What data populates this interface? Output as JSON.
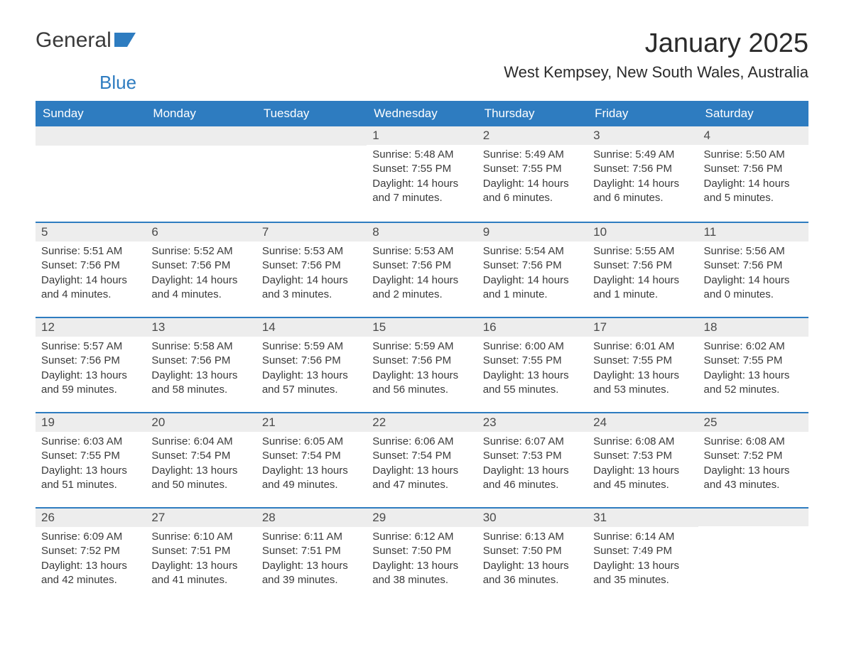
{
  "logo": {
    "text1": "General",
    "text2": "Blue"
  },
  "title": "January 2025",
  "location": "West Kempsey, New South Wales, Australia",
  "colors": {
    "header_bg": "#2e7cc0",
    "header_fg": "#ffffff",
    "daynum_bg": "#ededed",
    "accent": "#2e7cc0",
    "text": "#3a3a3a",
    "page_bg": "#ffffff"
  },
  "daysOfWeek": [
    "Sunday",
    "Monday",
    "Tuesday",
    "Wednesday",
    "Thursday",
    "Friday",
    "Saturday"
  ],
  "labels": {
    "sunrise": "Sunrise:",
    "sunset": "Sunset:",
    "daylight": "Daylight:"
  },
  "grid": [
    [
      null,
      null,
      null,
      {
        "n": "1",
        "sr": "5:48 AM",
        "ss": "7:55 PM",
        "dl": "14 hours and 7 minutes."
      },
      {
        "n": "2",
        "sr": "5:49 AM",
        "ss": "7:55 PM",
        "dl": "14 hours and 6 minutes."
      },
      {
        "n": "3",
        "sr": "5:49 AM",
        "ss": "7:56 PM",
        "dl": "14 hours and 6 minutes."
      },
      {
        "n": "4",
        "sr": "5:50 AM",
        "ss": "7:56 PM",
        "dl": "14 hours and 5 minutes."
      }
    ],
    [
      {
        "n": "5",
        "sr": "5:51 AM",
        "ss": "7:56 PM",
        "dl": "14 hours and 4 minutes."
      },
      {
        "n": "6",
        "sr": "5:52 AM",
        "ss": "7:56 PM",
        "dl": "14 hours and 4 minutes."
      },
      {
        "n": "7",
        "sr": "5:53 AM",
        "ss": "7:56 PM",
        "dl": "14 hours and 3 minutes."
      },
      {
        "n": "8",
        "sr": "5:53 AM",
        "ss": "7:56 PM",
        "dl": "14 hours and 2 minutes."
      },
      {
        "n": "9",
        "sr": "5:54 AM",
        "ss": "7:56 PM",
        "dl": "14 hours and 1 minute."
      },
      {
        "n": "10",
        "sr": "5:55 AM",
        "ss": "7:56 PM",
        "dl": "14 hours and 1 minute."
      },
      {
        "n": "11",
        "sr": "5:56 AM",
        "ss": "7:56 PM",
        "dl": "14 hours and 0 minutes."
      }
    ],
    [
      {
        "n": "12",
        "sr": "5:57 AM",
        "ss": "7:56 PM",
        "dl": "13 hours and 59 minutes."
      },
      {
        "n": "13",
        "sr": "5:58 AM",
        "ss": "7:56 PM",
        "dl": "13 hours and 58 minutes."
      },
      {
        "n": "14",
        "sr": "5:59 AM",
        "ss": "7:56 PM",
        "dl": "13 hours and 57 minutes."
      },
      {
        "n": "15",
        "sr": "5:59 AM",
        "ss": "7:56 PM",
        "dl": "13 hours and 56 minutes."
      },
      {
        "n": "16",
        "sr": "6:00 AM",
        "ss": "7:55 PM",
        "dl": "13 hours and 55 minutes."
      },
      {
        "n": "17",
        "sr": "6:01 AM",
        "ss": "7:55 PM",
        "dl": "13 hours and 53 minutes."
      },
      {
        "n": "18",
        "sr": "6:02 AM",
        "ss": "7:55 PM",
        "dl": "13 hours and 52 minutes."
      }
    ],
    [
      {
        "n": "19",
        "sr": "6:03 AM",
        "ss": "7:55 PM",
        "dl": "13 hours and 51 minutes."
      },
      {
        "n": "20",
        "sr": "6:04 AM",
        "ss": "7:54 PM",
        "dl": "13 hours and 50 minutes."
      },
      {
        "n": "21",
        "sr": "6:05 AM",
        "ss": "7:54 PM",
        "dl": "13 hours and 49 minutes."
      },
      {
        "n": "22",
        "sr": "6:06 AM",
        "ss": "7:54 PM",
        "dl": "13 hours and 47 minutes."
      },
      {
        "n": "23",
        "sr": "6:07 AM",
        "ss": "7:53 PM",
        "dl": "13 hours and 46 minutes."
      },
      {
        "n": "24",
        "sr": "6:08 AM",
        "ss": "7:53 PM",
        "dl": "13 hours and 45 minutes."
      },
      {
        "n": "25",
        "sr": "6:08 AM",
        "ss": "7:52 PM",
        "dl": "13 hours and 43 minutes."
      }
    ],
    [
      {
        "n": "26",
        "sr": "6:09 AM",
        "ss": "7:52 PM",
        "dl": "13 hours and 42 minutes."
      },
      {
        "n": "27",
        "sr": "6:10 AM",
        "ss": "7:51 PM",
        "dl": "13 hours and 41 minutes."
      },
      {
        "n": "28",
        "sr": "6:11 AM",
        "ss": "7:51 PM",
        "dl": "13 hours and 39 minutes."
      },
      {
        "n": "29",
        "sr": "6:12 AM",
        "ss": "7:50 PM",
        "dl": "13 hours and 38 minutes."
      },
      {
        "n": "30",
        "sr": "6:13 AM",
        "ss": "7:50 PM",
        "dl": "13 hours and 36 minutes."
      },
      {
        "n": "31",
        "sr": "6:14 AM",
        "ss": "7:49 PM",
        "dl": "13 hours and 35 minutes."
      },
      null
    ]
  ]
}
